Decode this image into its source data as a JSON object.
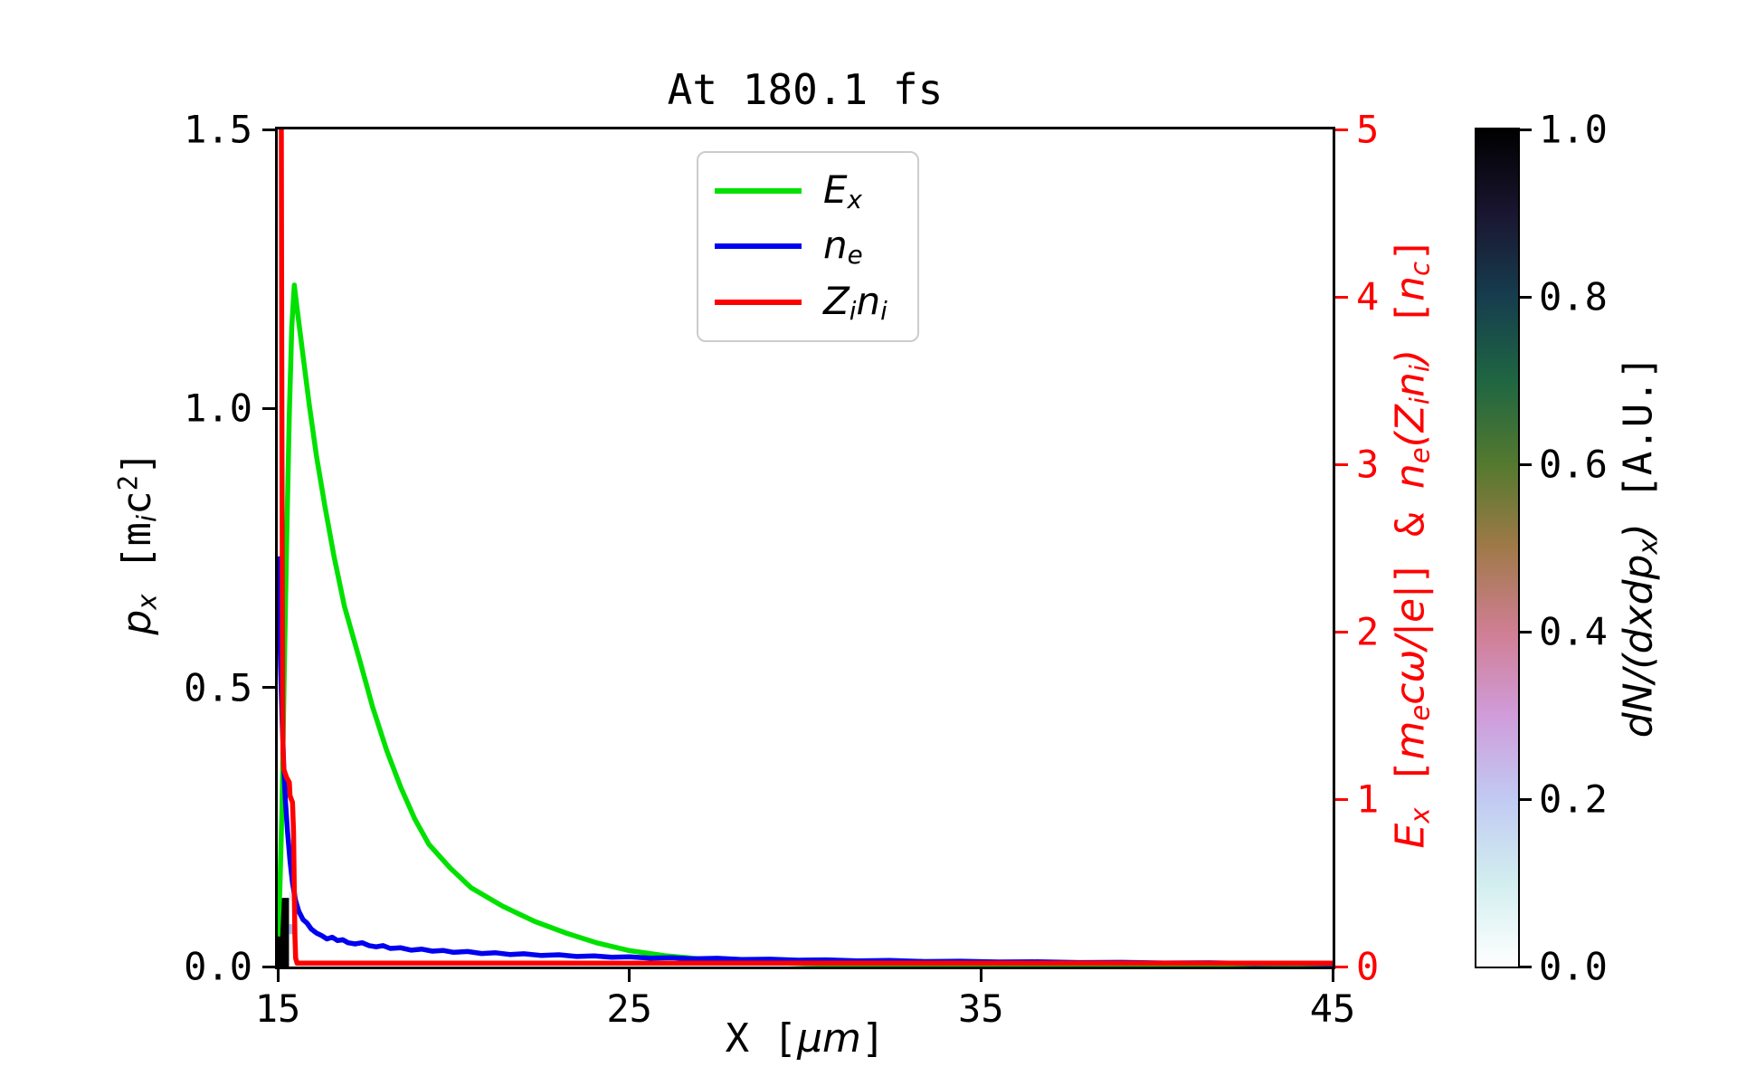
{
  "title": "At 180.1 fs",
  "axes": {
    "x": {
      "label": "X [μm]",
      "label_rich": [
        {
          "t": "X [",
          "f": "m"
        },
        {
          "t": "μm",
          "f": "i"
        },
        {
          "t": "]",
          "f": "m"
        }
      ],
      "range": [
        15,
        45
      ],
      "ticks": [
        {
          "v": 15,
          "label": "15"
        },
        {
          "v": 25,
          "label": "25"
        },
        {
          "v": 35,
          "label": "35"
        },
        {
          "v": 45,
          "label": "45"
        }
      ]
    },
    "y_left": {
      "label": "p_x [m_i c^2]",
      "label_rich": [
        {
          "t": "p",
          "f": "i"
        },
        {
          "t": "x",
          "f": "isub"
        },
        {
          "t": " [",
          "f": "m"
        },
        {
          "t": "m",
          "f": "m"
        },
        {
          "t": "i",
          "f": "isub"
        },
        {
          "t": "c",
          "f": "m"
        },
        {
          "t": "2",
          "f": "msup"
        },
        {
          "t": "]",
          "f": "m"
        }
      ],
      "range": [
        0,
        1.5
      ],
      "ticks": [
        {
          "v": 0,
          "label": "0.0"
        },
        {
          "v": 0.5,
          "label": "0.5"
        },
        {
          "v": 1.0,
          "label": "1.0"
        },
        {
          "v": 1.5,
          "label": "1.5"
        }
      ],
      "color": "#000000"
    },
    "y_right": {
      "label": "E_x [m_e cω/|e|] & n_e(Z_i n_i) [n_c]",
      "label_rich": [
        {
          "t": "E",
          "f": "i"
        },
        {
          "t": "x",
          "f": "isub"
        },
        {
          "t": " [",
          "f": "m"
        },
        {
          "t": "m",
          "f": "i"
        },
        {
          "t": "e",
          "f": "isub"
        },
        {
          "t": "cω/|e|",
          "f": "i"
        },
        {
          "t": "] & ",
          "f": "m"
        },
        {
          "t": "n",
          "f": "i"
        },
        {
          "t": "e",
          "f": "isub"
        },
        {
          "t": "(",
          "f": "i"
        },
        {
          "t": "Z",
          "f": "i"
        },
        {
          "t": "i",
          "f": "isub"
        },
        {
          "t": "n",
          "f": "i"
        },
        {
          "t": "i",
          "f": "isub"
        },
        {
          "t": ")",
          "f": "i"
        },
        {
          "t": " [",
          "f": "m"
        },
        {
          "t": "n",
          "f": "i"
        },
        {
          "t": "c",
          "f": "isub"
        },
        {
          "t": "]",
          "f": "m"
        }
      ],
      "range": [
        0,
        5
      ],
      "ticks": [
        {
          "v": 0,
          "label": "0"
        },
        {
          "v": 1,
          "label": "1"
        },
        {
          "v": 2,
          "label": "2"
        },
        {
          "v": 3,
          "label": "3"
        },
        {
          "v": 4,
          "label": "4"
        },
        {
          "v": 5,
          "label": "5"
        }
      ],
      "color": "#ff0000"
    }
  },
  "legend": {
    "items": [
      {
        "name": "E_x",
        "color": "#00e100",
        "rich": [
          {
            "t": "E",
            "f": "i"
          },
          {
            "t": "x",
            "f": "isub"
          }
        ]
      },
      {
        "name": "n_e",
        "color": "#0000f0",
        "rich": [
          {
            "t": "n",
            "f": "i"
          },
          {
            "t": "e",
            "f": "isub"
          }
        ]
      },
      {
        "name": "Z_i n_i",
        "color": "#ff0000",
        "rich": [
          {
            "t": "Z",
            "f": "i"
          },
          {
            "t": "i",
            "f": "isub"
          },
          {
            "t": "n",
            "f": "i"
          },
          {
            "t": "i",
            "f": "isub"
          }
        ]
      }
    ]
  },
  "colorbar": {
    "label": "dN/(dxdp_x) [A.U.]",
    "label_rich": [
      {
        "t": "dN",
        "f": "i"
      },
      {
        "t": "/(",
        "f": "i"
      },
      {
        "t": "dxdp",
        "f": "i"
      },
      {
        "t": "x",
        "f": "isub"
      },
      {
        "t": ")",
        "f": "i"
      },
      {
        "t": " [A.U.]",
        "f": "m"
      }
    ],
    "range": [
      0,
      1
    ],
    "ticks": [
      {
        "v": 0,
        "label": "0.0"
      },
      {
        "v": 0.2,
        "label": "0.2"
      },
      {
        "v": 0.4,
        "label": "0.4"
      },
      {
        "v": 0.6,
        "label": "0.6"
      },
      {
        "v": 0.8,
        "label": "0.8"
      },
      {
        "v": 1.0,
        "label": "1.0"
      }
    ],
    "colormap": "cubehelix_r",
    "stops_bottom_to_top": [
      "#ffffff",
      "#d2eeef",
      "#c1caf3",
      "#d09cda",
      "#d07e93",
      "#a07949",
      "#54792f",
      "#1f6642",
      "#163d4e",
      "#1a1530",
      "#000000"
    ]
  },
  "chart_data": {
    "type": "line",
    "title": "At 180.1 fs",
    "xlabel": "X [μm]",
    "ylabel_left": "p_x [m_i c^2]",
    "ylabel_right": "E_x [m_e cω/|e|] & n_e(Z_i n_i) [n_c]",
    "xlim": [
      15,
      45
    ],
    "ylim_left": [
      0,
      1.5
    ],
    "ylim_right": [
      0,
      5
    ],
    "grid": false,
    "legend_position": "upper center",
    "series": [
      {
        "id": "Ex",
        "name": "E_x",
        "axis": "right",
        "color": "#00e100",
        "points": [
          [
            15.0,
            0.18
          ],
          [
            15.06,
            0.45
          ],
          [
            15.12,
            0.95
          ],
          [
            15.18,
            1.7
          ],
          [
            15.25,
            2.5
          ],
          [
            15.33,
            3.3
          ],
          [
            15.4,
            3.82
          ],
          [
            15.47,
            4.07
          ],
          [
            15.55,
            3.93
          ],
          [
            15.7,
            3.68
          ],
          [
            15.9,
            3.35
          ],
          [
            16.1,
            3.05
          ],
          [
            16.34,
            2.75
          ],
          [
            16.6,
            2.45
          ],
          [
            16.9,
            2.15
          ],
          [
            17.33,
            1.83
          ],
          [
            17.7,
            1.55
          ],
          [
            18.1,
            1.29
          ],
          [
            18.5,
            1.07
          ],
          [
            18.9,
            0.88
          ],
          [
            19.3,
            0.73
          ],
          [
            19.9,
            0.59
          ],
          [
            20.5,
            0.47
          ],
          [
            21.4,
            0.36
          ],
          [
            22.3,
            0.27
          ],
          [
            23.2,
            0.2
          ],
          [
            24.1,
            0.14
          ],
          [
            25.0,
            0.095
          ],
          [
            26.0,
            0.065
          ],
          [
            27.0,
            0.046
          ],
          [
            28.5,
            0.028
          ],
          [
            30.0,
            0.016
          ],
          [
            32.0,
            0.009
          ],
          [
            35.0,
            0.004
          ],
          [
            39.0,
            0.002
          ],
          [
            45.0,
            0.001
          ]
        ]
      },
      {
        "id": "ne",
        "name": "n_e",
        "axis": "right",
        "color": "#0000f0",
        "points": [
          [
            15.02,
            2.45
          ],
          [
            15.05,
            2.1
          ],
          [
            15.08,
            1.8
          ],
          [
            15.12,
            1.5
          ],
          [
            15.17,
            1.2
          ],
          [
            15.22,
            0.98
          ],
          [
            15.28,
            0.8
          ],
          [
            15.35,
            0.63
          ],
          [
            15.42,
            0.5
          ],
          [
            15.5,
            0.4
          ],
          [
            15.6,
            0.33
          ],
          [
            15.72,
            0.28
          ],
          [
            15.83,
            0.26
          ],
          [
            15.95,
            0.225
          ],
          [
            16.1,
            0.2
          ],
          [
            16.25,
            0.185
          ],
          [
            16.4,
            0.165
          ],
          [
            16.55,
            0.175
          ],
          [
            16.7,
            0.155
          ],
          [
            16.85,
            0.16
          ],
          [
            17.0,
            0.142
          ],
          [
            17.2,
            0.135
          ],
          [
            17.4,
            0.142
          ],
          [
            17.6,
            0.125
          ],
          [
            17.8,
            0.118
          ],
          [
            18.0,
            0.125
          ],
          [
            18.2,
            0.108
          ],
          [
            18.5,
            0.112
          ],
          [
            18.8,
            0.098
          ],
          [
            19.1,
            0.104
          ],
          [
            19.4,
            0.092
          ],
          [
            19.7,
            0.096
          ],
          [
            20.0,
            0.085
          ],
          [
            20.4,
            0.09
          ],
          [
            20.8,
            0.078
          ],
          [
            21.2,
            0.082
          ],
          [
            21.6,
            0.072
          ],
          [
            22.0,
            0.076
          ],
          [
            22.5,
            0.066
          ],
          [
            23.0,
            0.07
          ],
          [
            23.5,
            0.06
          ],
          [
            24.0,
            0.064
          ],
          [
            24.5,
            0.055
          ],
          [
            25.0,
            0.058
          ],
          [
            25.6,
            0.05
          ],
          [
            26.2,
            0.053
          ],
          [
            26.8,
            0.046
          ],
          [
            27.5,
            0.049
          ],
          [
            28.2,
            0.042
          ],
          [
            29.0,
            0.044
          ],
          [
            29.8,
            0.038
          ],
          [
            30.6,
            0.04
          ],
          [
            31.5,
            0.034
          ],
          [
            32.4,
            0.036
          ],
          [
            33.4,
            0.03
          ],
          [
            34.4,
            0.032
          ],
          [
            35.5,
            0.027
          ],
          [
            36.6,
            0.028
          ],
          [
            37.8,
            0.024
          ],
          [
            39.0,
            0.025
          ],
          [
            40.2,
            0.021
          ],
          [
            41.5,
            0.022
          ],
          [
            42.8,
            0.018
          ],
          [
            44.0,
            0.019
          ],
          [
            45.0,
            0.016
          ]
        ]
      },
      {
        "id": "Zini",
        "name": "Z_i n_i",
        "axis": "right",
        "color": "#ff0000",
        "points": [
          [
            15.1,
            5.2
          ],
          [
            15.11,
            4.0
          ],
          [
            15.12,
            3.0
          ],
          [
            15.13,
            2.2
          ],
          [
            15.14,
            1.6
          ],
          [
            15.15,
            1.3
          ],
          [
            15.17,
            1.18
          ],
          [
            15.25,
            1.13
          ],
          [
            15.33,
            1.1
          ],
          [
            15.35,
            1.02
          ],
          [
            15.42,
            0.98
          ],
          [
            15.45,
            0.8
          ],
          [
            15.47,
            0.45
          ],
          [
            15.49,
            0.18
          ],
          [
            15.51,
            0.05
          ],
          [
            15.55,
            0.02
          ],
          [
            16.5,
            0.02
          ],
          [
            45.0,
            0.02
          ]
        ]
      }
    ],
    "histogram2d": {
      "label": "dN/(dxdp_x) [A.U.]",
      "value_range": [
        0,
        1
      ],
      "cells": [
        {
          "x": [
            15.0,
            15.32
          ],
          "p": [
            0,
            0.09
          ],
          "value": 1.0,
          "color": "#000000"
        },
        {
          "x": [
            15.09,
            15.32
          ],
          "p": [
            0.09,
            0.123
          ],
          "value": 1.0,
          "color": "#000000"
        },
        {
          "x": [
            15.0,
            15.09
          ],
          "p": [
            0.09,
            0.108
          ],
          "value": 0.22,
          "color": "#b7bfe9"
        },
        {
          "x": [
            15.32,
            15.6
          ],
          "p": [
            0.118,
            0.134
          ],
          "value": 0.08,
          "color": "#d9edf1"
        },
        {
          "x": [
            15.32,
            15.52
          ],
          "p": [
            0.058,
            0.076
          ],
          "value": 0.25,
          "color": "#aeb6e8"
        }
      ]
    }
  }
}
